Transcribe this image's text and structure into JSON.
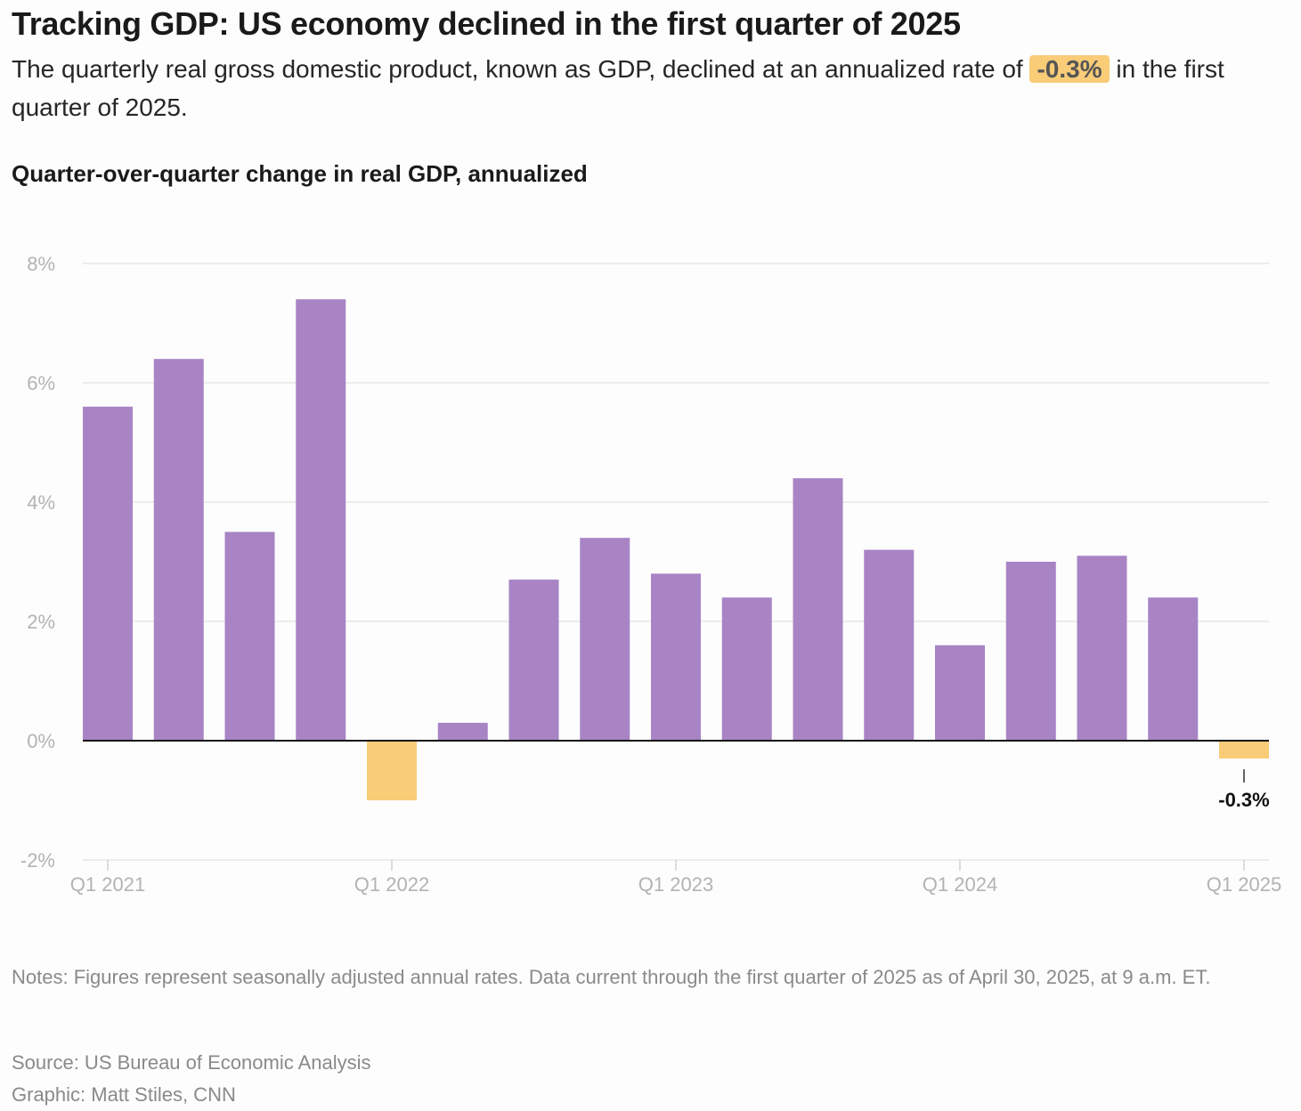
{
  "header": {
    "title": "Tracking GDP: US economy declined in the first quarter of 2025",
    "subtitle_before": "The quarterly real gross domestic product, known as GDP, declined at an annualized rate of ",
    "subtitle_highlight": "-0.3%",
    "subtitle_after": " in the first quarter of 2025."
  },
  "chart_title": "Quarter-over-quarter change in real GDP, annualized",
  "chart_data": {
    "type": "bar",
    "title": "Quarter-over-quarter change in real GDP, annualized",
    "categories": [
      "Q1 2021",
      "Q2 2021",
      "Q3 2021",
      "Q4 2021",
      "Q1 2022",
      "Q2 2022",
      "Q3 2022",
      "Q4 2022",
      "Q1 2023",
      "Q2 2023",
      "Q3 2023",
      "Q4 2023",
      "Q1 2024",
      "Q2 2024",
      "Q3 2024",
      "Q4 2024",
      "Q1 2025"
    ],
    "values": [
      5.6,
      6.4,
      3.5,
      7.4,
      -1.0,
      0.3,
      2.7,
      3.4,
      2.8,
      2.4,
      4.4,
      3.2,
      1.6,
      3.0,
      3.1,
      2.4,
      -0.3
    ],
    "ylim": [
      -2,
      8
    ],
    "yticks": [
      -2,
      0,
      2,
      4,
      6,
      8
    ],
    "ytick_labels": [
      "-2%",
      "0%",
      "2%",
      "4%",
      "6%",
      "8%"
    ],
    "xtick_labels": [
      "Q1 2021",
      "Q1 2022",
      "Q1 2023",
      "Q1 2024",
      "Q1 2025"
    ],
    "xtick_indices": [
      0,
      4,
      8,
      12,
      16
    ],
    "xlabel": "",
    "ylabel": "",
    "positive_color": "#a884c5",
    "negative_color": "#f9cc78",
    "annotation": {
      "index": 16,
      "label": "-0.3%"
    }
  },
  "notes": "Notes: Figures represent seasonally adjusted annual rates. Data current through the first quarter of 2025 as of April 30, 2025, at 9 a.m. ET.",
  "source": "Source: US Bureau of Economic Analysis",
  "credit": "Graphic: Matt Stiles, CNN"
}
